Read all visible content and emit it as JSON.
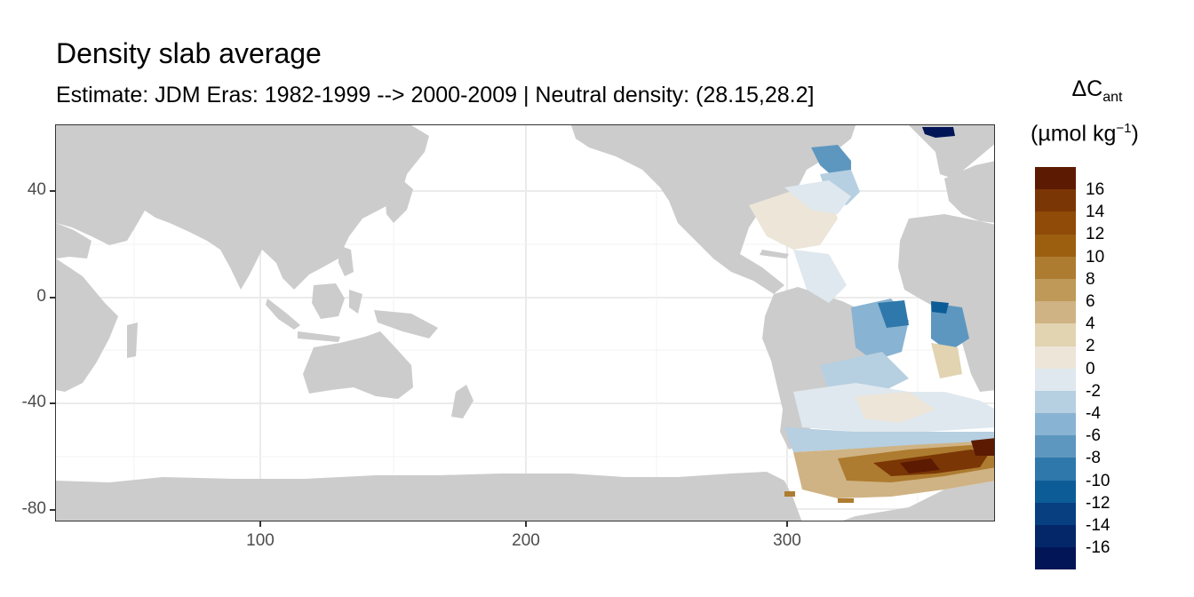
{
  "title": "Density slab average",
  "subtitle": "Estimate: JDM Eras: 1982-1999 --> 2000-2009 | Neutral density: (28.15,28.2]",
  "legend": {
    "title_main": "ΔC",
    "title_sub": "ant",
    "unit_main": "(µmol kg",
    "unit_sup": "−1",
    "unit_end": ")",
    "labels": [
      "16",
      "14",
      "12",
      "10",
      "8",
      "6",
      "4",
      "2",
      "0",
      "-2",
      "-4",
      "-6",
      "-8",
      "-10",
      "-12",
      "-14",
      "-16"
    ],
    "colors": [
      "#5c1a02",
      "#7b3605",
      "#8f4b07",
      "#9c5f10",
      "#ae7c30",
      "#bf9958",
      "#cfb384",
      "#e2d3b1",
      "#ece5d8",
      "#dfe8ee",
      "#b6cfe1",
      "#89b3d2",
      "#5d97c0",
      "#2f78ab",
      "#0c5c97",
      "#073f81",
      "#04276a",
      "#021556"
    ]
  },
  "chart_data": {
    "type": "heatmap",
    "title": "Density slab average",
    "subtitle": "Estimate: JDM Eras: 1982-1999 --> 2000-2009 | Neutral density: (28.15,28.2]",
    "xlabel": "",
    "ylabel": "",
    "xlim": [
      20,
      380
    ],
    "ylim": [
      -85,
      65
    ],
    "x_ticks": [
      "100",
      "200",
      "300"
    ],
    "y_ticks": [
      "40",
      "0",
      "-40",
      "-80"
    ],
    "colorbar_range": [
      -16,
      16
    ],
    "colorbar_step": 2,
    "grid": true,
    "land_color": "#cccccc"
  }
}
